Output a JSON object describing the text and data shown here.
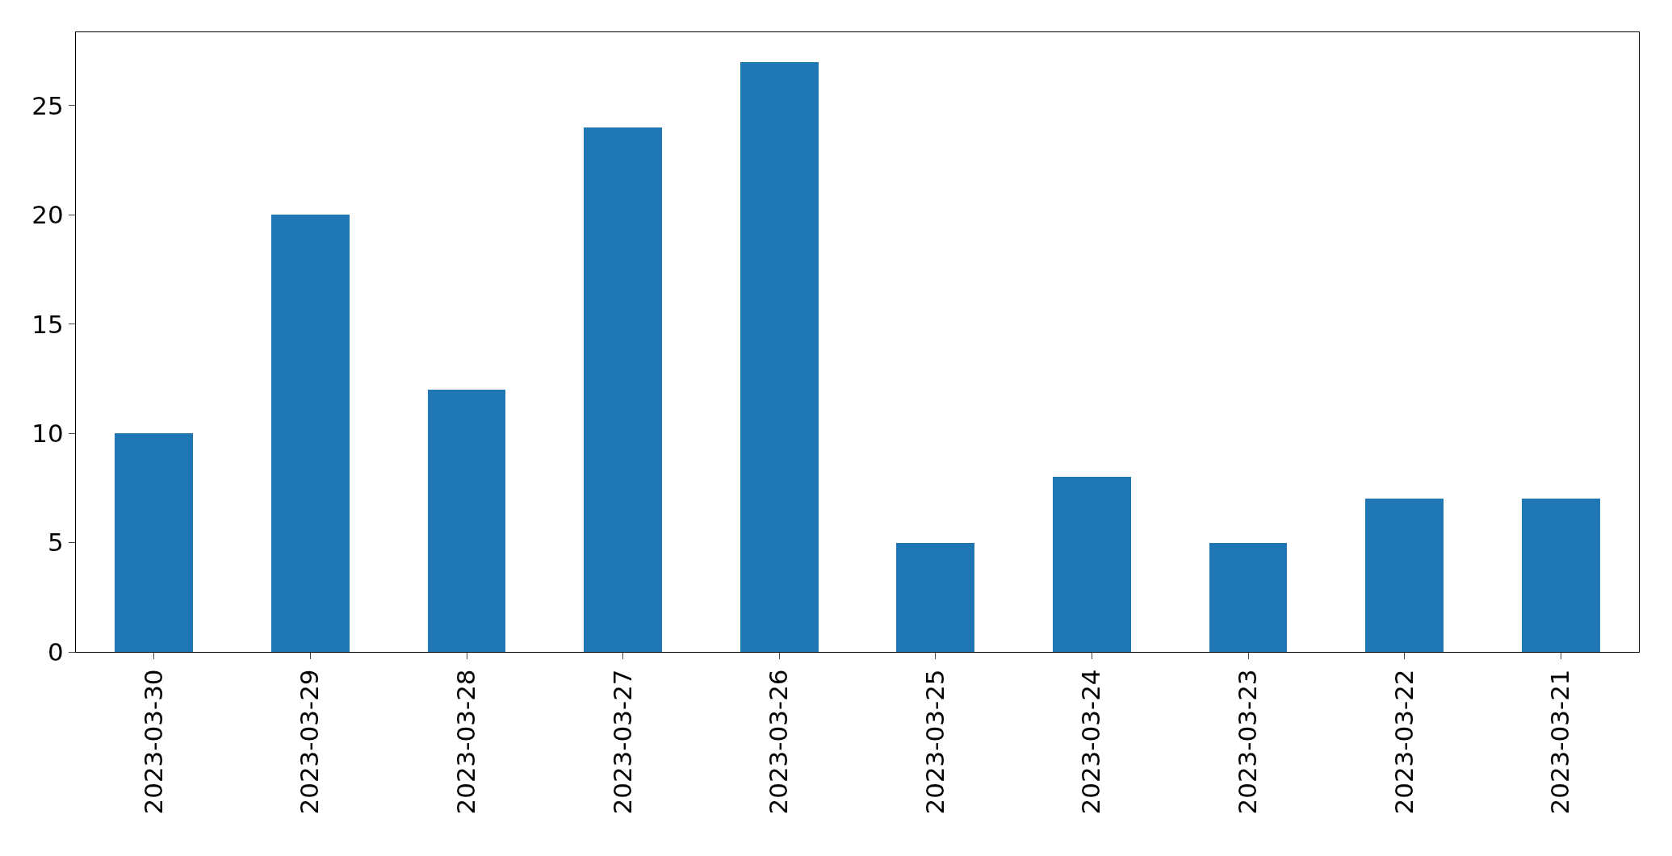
{
  "chart_data": {
    "type": "bar",
    "categories": [
      "2023-03-30",
      "2023-03-29",
      "2023-03-28",
      "2023-03-27",
      "2023-03-26",
      "2023-03-25",
      "2023-03-24",
      "2023-03-23",
      "2023-03-22",
      "2023-03-21"
    ],
    "values": [
      10,
      20,
      12,
      24,
      27,
      5,
      8,
      5,
      7,
      7
    ],
    "color": "#1f77b4",
    "ylim": [
      0,
      28.35
    ],
    "yticks": [
      0,
      5,
      10,
      15,
      20,
      25
    ]
  }
}
